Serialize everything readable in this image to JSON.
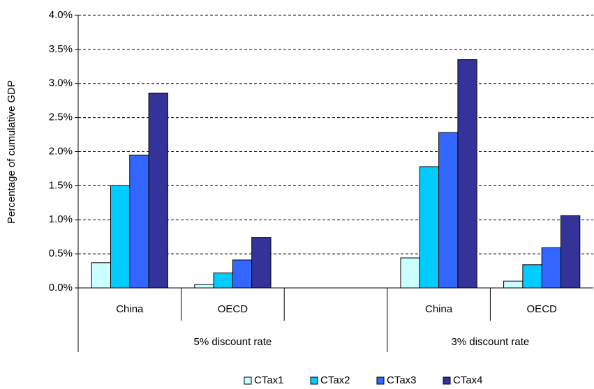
{
  "chart_data": {
    "type": "bar",
    "y_label": "Percentage of cumulative GDP",
    "categories": [
      "China",
      "OECD",
      null,
      "China",
      "OECD"
    ],
    "groups": [
      {
        "label": "5% discount rate",
        "span": 3
      },
      {
        "label": "3% discount rate",
        "span": 2
      }
    ],
    "series": [
      {
        "name": "CTax1",
        "color": "#ccffff",
        "values": [
          0.37,
          0.05,
          null,
          0.44,
          0.1
        ]
      },
      {
        "name": "CTax2",
        "color": "#00ccff",
        "values": [
          1.5,
          0.22,
          null,
          1.78,
          0.34
        ]
      },
      {
        "name": "CTax3",
        "color": "#3366ff",
        "values": [
          1.95,
          0.41,
          null,
          2.28,
          0.59
        ]
      },
      {
        "name": "CTax4",
        "color": "#333399",
        "values": [
          2.86,
          0.74,
          null,
          3.35,
          1.06
        ]
      }
    ],
    "ylim": [
      0,
      4
    ],
    "yticks": [
      {
        "value": 0,
        "label": "0.0%"
      },
      {
        "value": 0.5,
        "label": "0.5%"
      },
      {
        "value": 1,
        "label": "1.0%"
      },
      {
        "value": 1.5,
        "label": "1.5%"
      },
      {
        "value": 2,
        "label": "2.0%"
      },
      {
        "value": 2.5,
        "label": "2.5%"
      },
      {
        "value": 3,
        "label": "3.0%"
      },
      {
        "value": 3.5,
        "label": "3.5%"
      },
      {
        "value": 4,
        "label": "4.0%"
      }
    ],
    "grid": true,
    "legend": "bottom"
  }
}
